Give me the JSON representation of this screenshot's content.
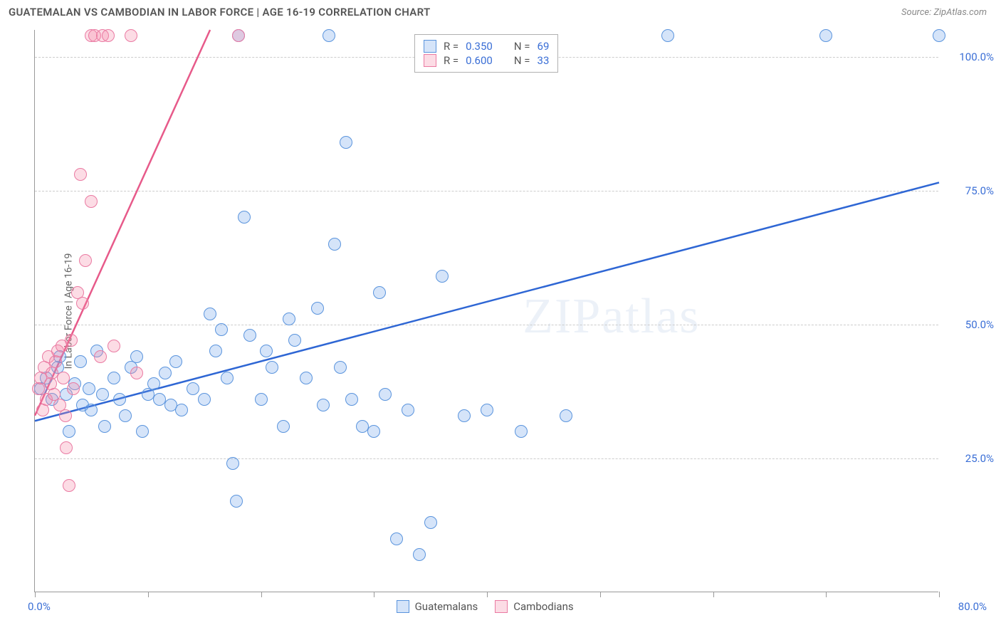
{
  "header": {
    "title": "GUATEMALAN VS CAMBODIAN IN LABOR FORCE | AGE 16-19 CORRELATION CHART",
    "source_prefix": "Source: ",
    "source": "ZipAtlas.com"
  },
  "chart": {
    "type": "scatter",
    "yaxis_title": "In Labor Force | Age 16-19",
    "watermark": "ZIPatlas",
    "background_color": "#ffffff",
    "grid_color": "#cccccc",
    "axis_color": "#999999",
    "xlim": [
      0,
      80
    ],
    "ylim": [
      0,
      105
    ],
    "xticks": [
      0,
      10,
      20,
      30,
      40,
      50,
      60,
      70,
      80
    ],
    "yticks": [
      25,
      50,
      75,
      100
    ],
    "ytick_labels": [
      "25.0%",
      "50.0%",
      "75.0%",
      "100.0%"
    ],
    "xaxis_label_left": "0.0%",
    "xaxis_label_right": "80.0%",
    "marker_radius": 9,
    "marker_stroke_width": 1.2,
    "series": [
      {
        "name": "Guatemalans",
        "color_fill": "rgba(103,159,232,0.28)",
        "color_stroke": "#5a94dd",
        "trend_color": "#2e66d4",
        "trend": {
          "x1": 0,
          "y1": 32,
          "x2": 80,
          "y2": 76.5
        },
        "stats": {
          "R": "0.350",
          "N": "69"
        },
        "points": [
          [
            0.5,
            38
          ],
          [
            1,
            40
          ],
          [
            1.5,
            36
          ],
          [
            2,
            42
          ],
          [
            2.2,
            44
          ],
          [
            2.8,
            37
          ],
          [
            3,
            30
          ],
          [
            3.5,
            39
          ],
          [
            4,
            43
          ],
          [
            4.2,
            35
          ],
          [
            4.8,
            38
          ],
          [
            5,
            34
          ],
          [
            5.5,
            45
          ],
          [
            6,
            37
          ],
          [
            6.2,
            31
          ],
          [
            7,
            40
          ],
          [
            7.5,
            36
          ],
          [
            8,
            33
          ],
          [
            8.5,
            42
          ],
          [
            9,
            44
          ],
          [
            9.5,
            30
          ],
          [
            10,
            37
          ],
          [
            10.5,
            39
          ],
          [
            11,
            36
          ],
          [
            11.5,
            41
          ],
          [
            12,
            35
          ],
          [
            12.5,
            43
          ],
          [
            13,
            34
          ],
          [
            14,
            38
          ],
          [
            15,
            36
          ],
          [
            15.5,
            52
          ],
          [
            16,
            45
          ],
          [
            16.5,
            49
          ],
          [
            17,
            40
          ],
          [
            17.5,
            24
          ],
          [
            17.8,
            17
          ],
          [
            18,
            104
          ],
          [
            18.5,
            70
          ],
          [
            19,
            48
          ],
          [
            20,
            36
          ],
          [
            20.5,
            45
          ],
          [
            21,
            42
          ],
          [
            22,
            31
          ],
          [
            22.5,
            51
          ],
          [
            23,
            47
          ],
          [
            24,
            40
          ],
          [
            25,
            53
          ],
          [
            25.5,
            35
          ],
          [
            26,
            104
          ],
          [
            26.5,
            65
          ],
          [
            27,
            42
          ],
          [
            27.5,
            84
          ],
          [
            28,
            36
          ],
          [
            29,
            31
          ],
          [
            30,
            30
          ],
          [
            30.5,
            56
          ],
          [
            31,
            37
          ],
          [
            32,
            10
          ],
          [
            33,
            34
          ],
          [
            34,
            7
          ],
          [
            35,
            13
          ],
          [
            36,
            59
          ],
          [
            38,
            33
          ],
          [
            40,
            34
          ],
          [
            43,
            30
          ],
          [
            47,
            33
          ],
          [
            56,
            104
          ],
          [
            70,
            104
          ],
          [
            80,
            104
          ]
        ]
      },
      {
        "name": "Cambodians",
        "color_fill": "rgba(244,138,170,0.30)",
        "color_stroke": "#ea7aa2",
        "trend_color": "#e75a8a",
        "trend": {
          "x1": 0,
          "y1": 33,
          "x2": 15.5,
          "y2": 105
        },
        "stats": {
          "R": "0.600",
          "N": "33"
        },
        "points": [
          [
            0.3,
            38
          ],
          [
            0.5,
            40
          ],
          [
            0.7,
            34
          ],
          [
            0.8,
            42
          ],
          [
            1,
            36
          ],
          [
            1.2,
            44
          ],
          [
            1.4,
            39
          ],
          [
            1.5,
            41
          ],
          [
            1.7,
            37
          ],
          [
            1.8,
            43
          ],
          [
            2,
            45
          ],
          [
            2.2,
            35
          ],
          [
            2.4,
            46
          ],
          [
            2.5,
            40
          ],
          [
            2.7,
            33
          ],
          [
            2.8,
            27
          ],
          [
            3,
            20
          ],
          [
            3.2,
            47
          ],
          [
            3.4,
            38
          ],
          [
            3.8,
            56
          ],
          [
            4,
            78
          ],
          [
            4.2,
            54
          ],
          [
            4.5,
            62
          ],
          [
            5,
            73
          ],
          [
            5,
            104
          ],
          [
            5.3,
            104
          ],
          [
            5.8,
            44
          ],
          [
            6,
            104
          ],
          [
            6.5,
            104
          ],
          [
            7,
            46
          ],
          [
            8.5,
            104
          ],
          [
            9,
            41
          ],
          [
            18,
            104
          ]
        ]
      }
    ],
    "stats_legend": {
      "r_label": "R =",
      "n_label": "N ="
    },
    "bottom_legend": {
      "items": [
        "Guatemalans",
        "Cambodians"
      ]
    }
  }
}
